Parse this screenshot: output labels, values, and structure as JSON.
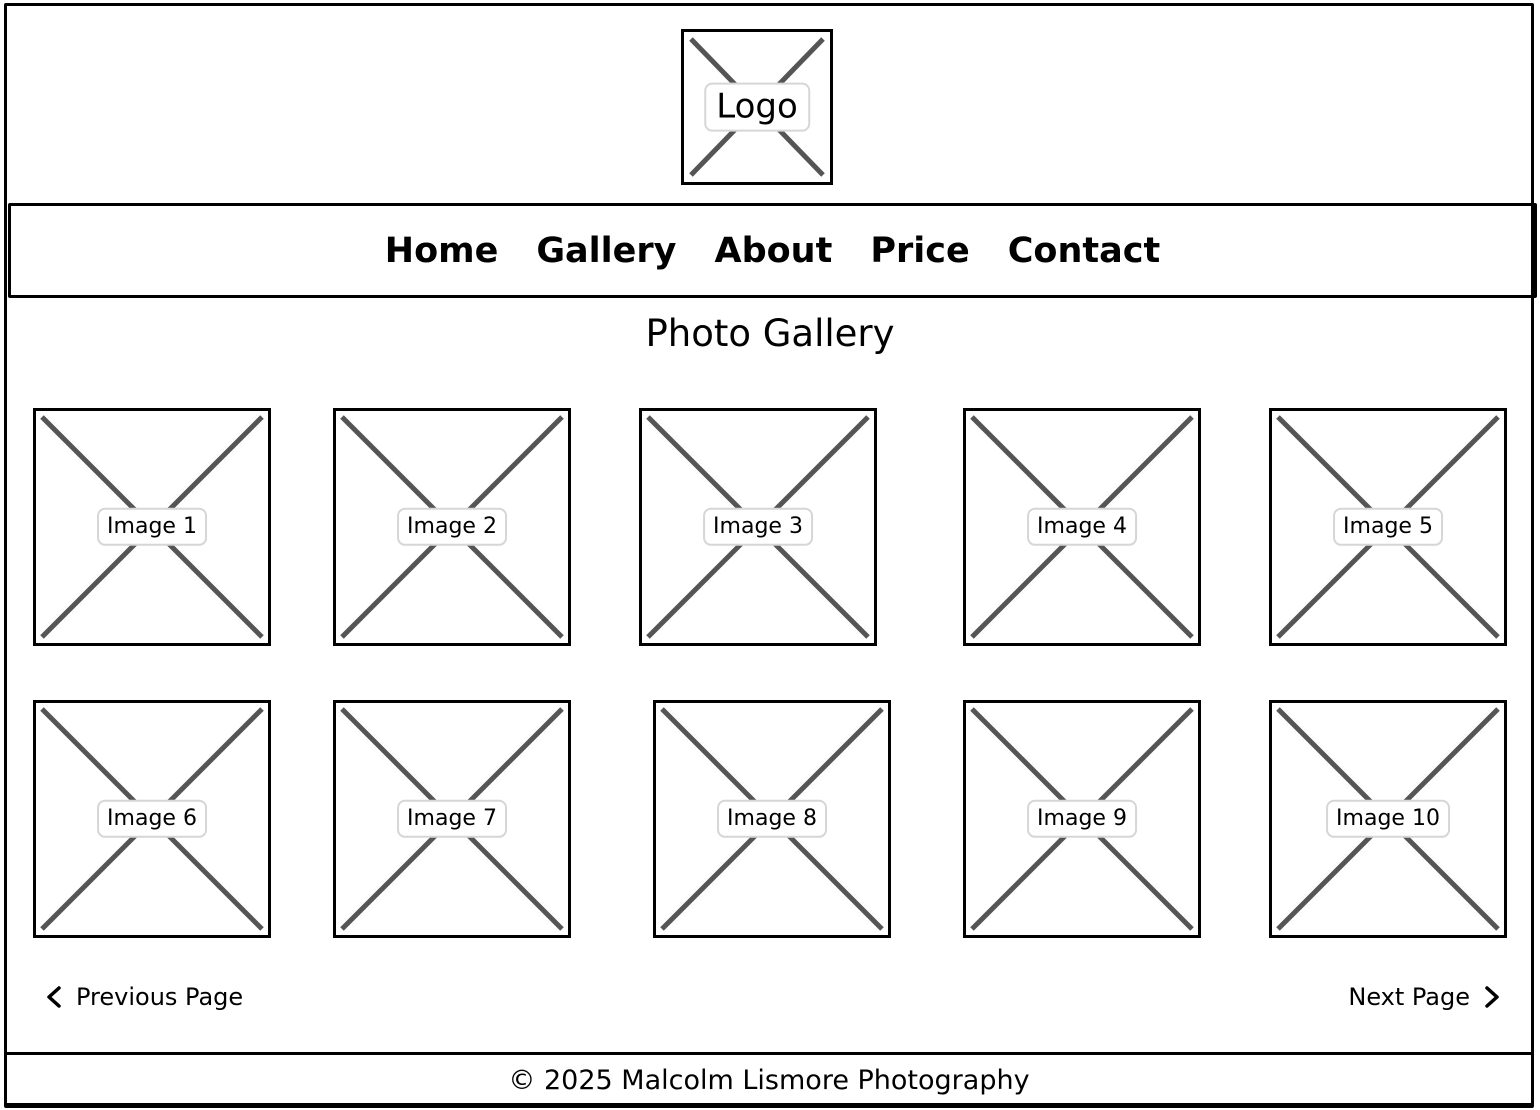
{
  "header": {
    "logo_label": "Logo"
  },
  "nav": {
    "items": [
      {
        "label": "Home"
      },
      {
        "label": "Gallery"
      },
      {
        "label": "About"
      },
      {
        "label": "Price"
      },
      {
        "label": "Contact"
      }
    ]
  },
  "main": {
    "title": "Photo Gallery",
    "images": [
      {
        "label": "Image 1"
      },
      {
        "label": "Image 2"
      },
      {
        "label": "Image 3"
      },
      {
        "label": "Image 4"
      },
      {
        "label": "Image 5"
      },
      {
        "label": "Image 6"
      },
      {
        "label": "Image 7"
      },
      {
        "label": "Image 8"
      },
      {
        "label": "Image 9"
      },
      {
        "label": "Image 10"
      }
    ]
  },
  "pagination": {
    "previous_label": "Previous Page",
    "next_label": "Next Page"
  },
  "footer": {
    "text": "© 2025 Malcolm Lismore Photography"
  }
}
